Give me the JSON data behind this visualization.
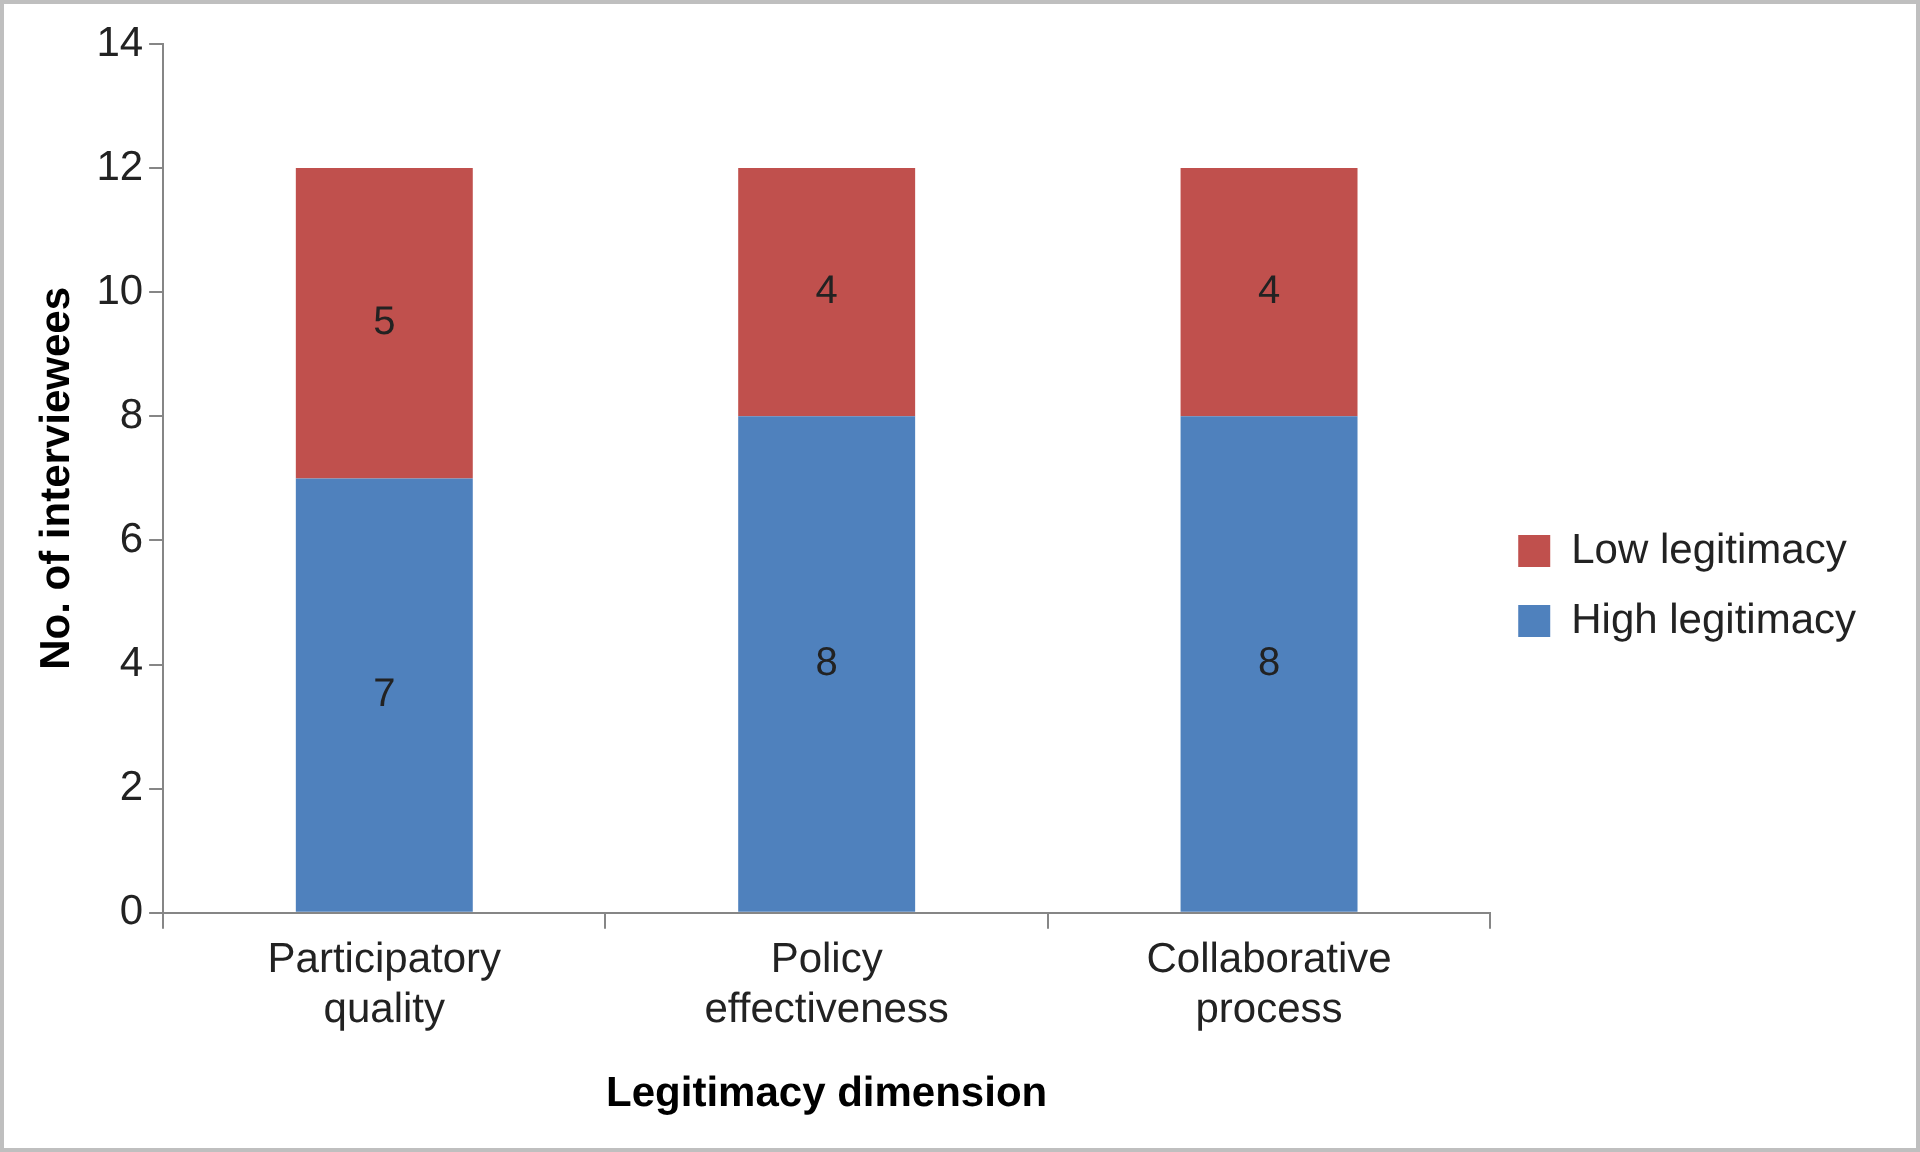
{
  "chart_data": {
    "type": "bar",
    "stacked": true,
    "xlabel": "Legitimacy dimension",
    "ylabel": "No. of interviewees",
    "categories": [
      "Participatory quality",
      "Policy effectiveness",
      "Collaborative process"
    ],
    "series": [
      {
        "name": "High legitimacy",
        "color": "#4f81bd",
        "values": [
          7,
          8,
          8
        ]
      },
      {
        "name": "Low legitimacy",
        "color": "#c0504d",
        "values": [
          5,
          4,
          4
        ]
      }
    ],
    "ylim": [
      0,
      14
    ],
    "yticks": [
      0,
      2,
      4,
      6,
      8,
      10,
      12,
      14
    ],
    "grid": false,
    "legend": "right",
    "data_labels": true
  }
}
